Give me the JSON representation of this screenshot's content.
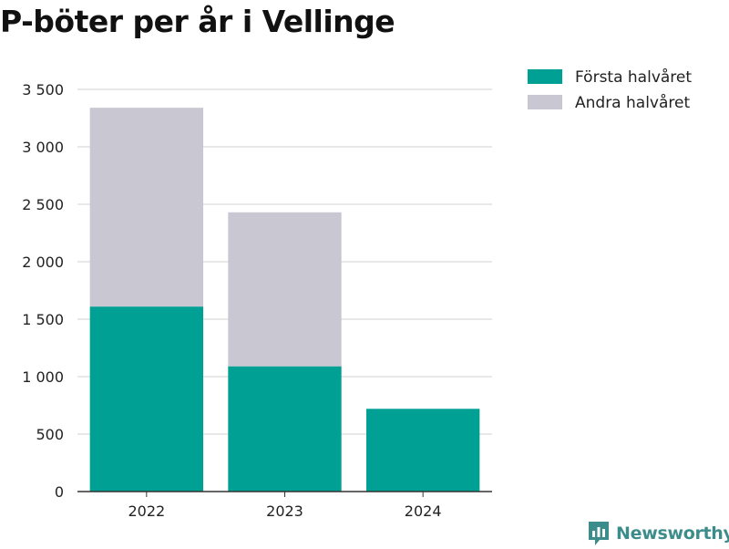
{
  "title": "P-böter per år i Vellinge",
  "brand": "Newsworthy",
  "colors": {
    "first_half": "#00a095",
    "second_half": "#c8c7d2",
    "grid": "#d9d9d9",
    "axis": "#333333",
    "brand": "#3c8c8c"
  },
  "chart_data": {
    "type": "bar",
    "stacked": true,
    "title": "P-böter per år i Vellinge",
    "xlabel": "",
    "ylabel": "",
    "categories": [
      "2022",
      "2023",
      "2024"
    ],
    "series": [
      {
        "name": "Första halvåret",
        "values": [
          1610,
          1090,
          720
        ]
      },
      {
        "name": "Andra halvåret",
        "values": [
          1730,
          1340,
          0
        ]
      }
    ],
    "ylim": [
      0,
      3500
    ],
    "yticks": [
      0,
      500,
      1000,
      1500,
      2000,
      2500,
      3000,
      3500
    ],
    "ytick_labels": [
      "0",
      "500",
      "1 000",
      "1 500",
      "2 000",
      "2 500",
      "3 000",
      "3 500"
    ],
    "grid": true,
    "legend": "top-right"
  }
}
